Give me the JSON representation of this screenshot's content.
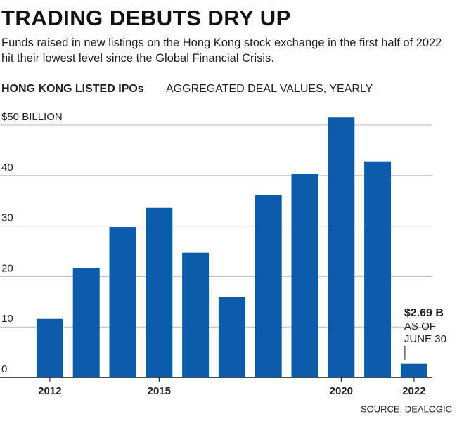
{
  "chart_data": {
    "type": "bar",
    "title": "TRADING DEBUTS DRY UP",
    "subtitle": "Funds raised in new listings on the Hong Kong stock exchange in the first half of 2022 hit their lowest level since the Global Financial Crisis.",
    "chart_label": "HONG KONG LISTED IPOs",
    "chart_sublabel": "AGGREGATED DEAL VALUES, YEARLY",
    "categories": [
      "2012",
      null,
      null,
      "2015",
      null,
      null,
      null,
      null,
      "2020",
      null,
      "2022"
    ],
    "values": [
      11.6,
      21.7,
      29.8,
      33.6,
      24.7,
      15.9,
      36.1,
      40.3,
      51.5,
      42.8,
      2.69
    ],
    "value_labels": [
      null,
      null,
      null,
      null,
      null,
      null,
      null,
      null,
      null,
      null,
      "$2.69 B"
    ],
    "annotation": [
      "AS OF",
      "JUNE 30"
    ],
    "color": "#0b5cab",
    "ylim": [
      0,
      50
    ],
    "yticks": [
      0,
      10,
      20,
      30,
      40,
      {
        "value": 50,
        "label": "$50 BILLION"
      }
    ],
    "grid": true,
    "source": "SOURCE: DEALOGIC"
  }
}
